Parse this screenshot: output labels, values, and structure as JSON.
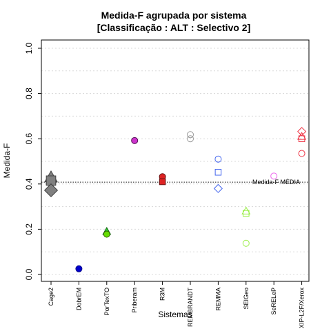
{
  "chart_data": {
    "type": "scatter",
    "title": "Medida-F agrupada por sistema",
    "subtitle": "[Classificação : ALT : Selectivo 2]",
    "xlabel": "Sistemas",
    "ylabel": "Medida-F",
    "ylim": [
      0,
      1
    ],
    "yticks": [
      "0.0",
      "0.2",
      "0.4",
      "0.6",
      "0.8",
      "1.0"
    ],
    "grid": "horizontal-dotted",
    "categories": [
      "Cage2",
      "DobrEM",
      "PorTexTO",
      "Priberam",
      "R3M",
      "REMBRANDT",
      "REMMA",
      "SEIGeo",
      "SeRELeP",
      "XIP-L2F/Xerox"
    ],
    "reference": {
      "label": "Medida-F MÉDIA",
      "value": 0.408
    },
    "points": [
      {
        "cat": 0,
        "y": 0.43,
        "shape": "triangle",
        "fill": "#808080",
        "stroke": "#404040",
        "size": 1.6
      },
      {
        "cat": 0,
        "y": 0.415,
        "shape": "square",
        "fill": "#808080",
        "stroke": "#404040",
        "size": 1.6
      },
      {
        "cat": 0,
        "y": 0.372,
        "shape": "diamond",
        "fill": "#808080",
        "stroke": "#404040",
        "size": 1.6
      },
      {
        "cat": 1,
        "y": 0.025,
        "shape": "circle",
        "fill": "#0000cc",
        "stroke": "#000088",
        "size": 1
      },
      {
        "cat": 2,
        "y": 0.19,
        "shape": "triangle",
        "fill": "#33cc33",
        "stroke": "#116611",
        "size": 1
      },
      {
        "cat": 2,
        "y": 0.178,
        "shape": "circle",
        "fill": "#66dd00",
        "stroke": "#336600",
        "size": 1
      },
      {
        "cat": 3,
        "y": 0.592,
        "shape": "circle",
        "fill": "#cc33cc",
        "stroke": "#551155",
        "size": 1
      },
      {
        "cat": 4,
        "y": 0.432,
        "shape": "circle",
        "fill": "#dd2222",
        "stroke": "#661111",
        "size": 1
      },
      {
        "cat": 4,
        "y": 0.41,
        "shape": "square",
        "fill": "#dd2222",
        "stroke": "#661111",
        "size": 1
      },
      {
        "cat": 5,
        "y": 0.618,
        "shape": "circle",
        "fill": "none",
        "stroke": "#999999",
        "size": 1
      },
      {
        "cat": 5,
        "y": 0.6,
        "shape": "circle",
        "fill": "none",
        "stroke": "#999999",
        "size": 1
      },
      {
        "cat": 6,
        "y": 0.51,
        "shape": "circle",
        "fill": "none",
        "stroke": "#4466ee",
        "size": 1
      },
      {
        "cat": 6,
        "y": 0.452,
        "shape": "square",
        "fill": "none",
        "stroke": "#4466ee",
        "size": 1
      },
      {
        "cat": 6,
        "y": 0.38,
        "shape": "diamond",
        "fill": "none",
        "stroke": "#4466ee",
        "size": 1
      },
      {
        "cat": 7,
        "y": 0.28,
        "shape": "triangle",
        "fill": "none",
        "stroke": "#99ee44",
        "size": 1
      },
      {
        "cat": 7,
        "y": 0.27,
        "shape": "square",
        "fill": "none",
        "stroke": "#99ee44",
        "size": 1
      },
      {
        "cat": 7,
        "y": 0.138,
        "shape": "circle",
        "fill": "none",
        "stroke": "#99ee44",
        "size": 1
      },
      {
        "cat": 8,
        "y": 0.435,
        "shape": "circle",
        "fill": "none",
        "stroke": "#ee66ee",
        "size": 1
      },
      {
        "cat": 9,
        "y": 0.632,
        "shape": "diamond",
        "fill": "none",
        "stroke": "#ee3344",
        "size": 1
      },
      {
        "cat": 9,
        "y": 0.61,
        "shape": "triangle",
        "fill": "none",
        "stroke": "#ee3344",
        "size": 1
      },
      {
        "cat": 9,
        "y": 0.6,
        "shape": "square",
        "fill": "none",
        "stroke": "#ee3344",
        "size": 1
      },
      {
        "cat": 9,
        "y": 0.535,
        "shape": "circle",
        "fill": "none",
        "stroke": "#ee3344",
        "size": 1
      }
    ]
  }
}
